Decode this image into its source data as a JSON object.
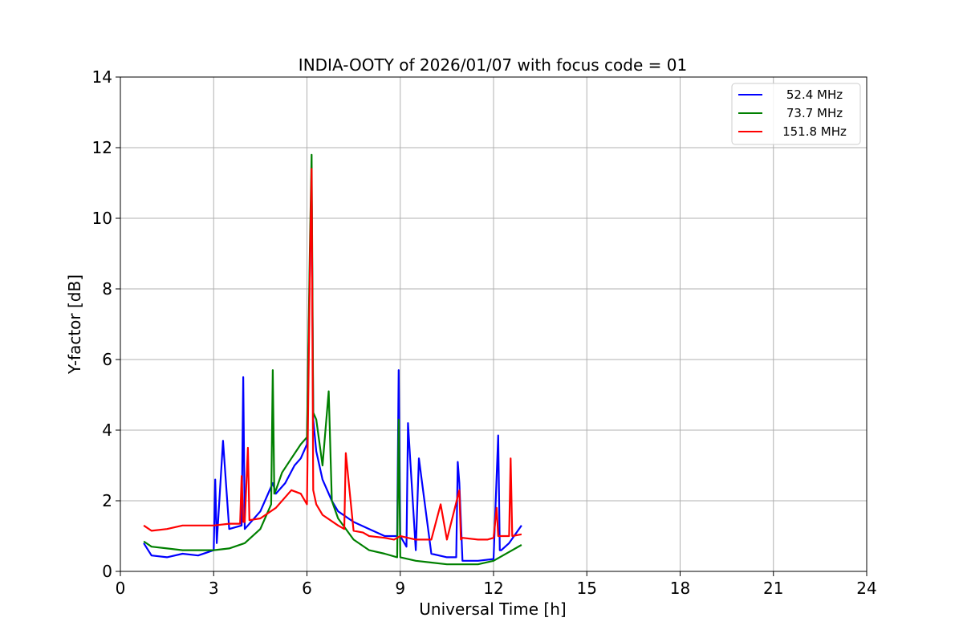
{
  "chart_data": {
    "type": "line",
    "title": "INDIA-OOTY of 2026/01/07 with focus code = 01",
    "xlabel": "Universal Time [h]",
    "ylabel": "Y-factor [dB]",
    "xlim": [
      0,
      24
    ],
    "ylim": [
      0,
      14
    ],
    "xticks": [
      0,
      3,
      6,
      9,
      12,
      15,
      18,
      21,
      24
    ],
    "yticks": [
      0,
      2,
      4,
      6,
      8,
      10,
      12,
      14
    ],
    "grid": true,
    "legend_position": "top-right",
    "series": [
      {
        "name": " 52.4 MHz",
        "color": "#0000ff",
        "x": [
          0.75,
          1.0,
          1.5,
          2.0,
          2.5,
          3.0,
          3.05,
          3.1,
          3.3,
          3.5,
          3.9,
          3.95,
          4.0,
          4.5,
          4.9,
          5.0,
          5.3,
          5.6,
          5.8,
          6.0,
          6.1,
          6.15,
          6.2,
          6.3,
          6.5,
          6.8,
          7.0,
          7.5,
          8.0,
          8.5,
          8.9,
          8.95,
          9.0,
          9.2,
          9.25,
          9.5,
          9.6,
          10.0,
          10.5,
          10.8,
          10.85,
          10.9,
          11.0,
          11.5,
          12.0,
          12.15,
          12.2,
          12.25,
          12.5,
          12.9
        ],
        "y": [
          0.8,
          0.45,
          0.4,
          0.5,
          0.45,
          0.6,
          2.6,
          0.8,
          3.7,
          1.2,
          1.3,
          5.5,
          1.2,
          1.7,
          2.5,
          2.2,
          2.5,
          3.0,
          3.2,
          3.6,
          9.0,
          10.9,
          4.3,
          3.4,
          2.6,
          2.0,
          1.7,
          1.4,
          1.2,
          1.0,
          1.0,
          5.7,
          1.0,
          0.7,
          4.2,
          0.6,
          3.2,
          0.5,
          0.4,
          0.4,
          3.1,
          2.5,
          0.3,
          0.3,
          0.35,
          3.85,
          0.6,
          0.6,
          0.8,
          1.3
        ]
      },
      {
        "name": " 73.7 MHz",
        "color": "#008000",
        "x": [
          0.75,
          1.0,
          1.5,
          2.0,
          2.5,
          3.0,
          3.5,
          4.0,
          4.5,
          4.85,
          4.9,
          4.95,
          5.0,
          5.2,
          5.5,
          5.8,
          6.0,
          6.1,
          6.15,
          6.2,
          6.3,
          6.5,
          6.7,
          6.8,
          7.0,
          7.5,
          8.0,
          8.5,
          8.9,
          8.95,
          9.0,
          9.5,
          10.0,
          10.5,
          11.0,
          11.5,
          12.0,
          12.5,
          12.9
        ],
        "y": [
          0.85,
          0.7,
          0.65,
          0.6,
          0.6,
          0.6,
          0.65,
          0.8,
          1.2,
          1.9,
          5.7,
          2.2,
          2.3,
          2.8,
          3.2,
          3.6,
          3.8,
          9.5,
          11.8,
          4.5,
          4.3,
          3.0,
          5.1,
          2.0,
          1.5,
          0.9,
          0.6,
          0.5,
          0.4,
          4.3,
          0.4,
          0.3,
          0.25,
          0.2,
          0.2,
          0.2,
          0.3,
          0.55,
          0.75
        ]
      },
      {
        "name": " 151.8 MHz",
        "color": "#ff0000",
        "x": [
          0.75,
          1.0,
          1.5,
          2.0,
          2.5,
          3.0,
          3.5,
          3.85,
          3.9,
          3.95,
          4.0,
          4.1,
          4.15,
          4.5,
          5.0,
          5.5,
          5.8,
          6.0,
          6.1,
          6.15,
          6.2,
          6.3,
          6.5,
          7.0,
          7.2,
          7.25,
          7.5,
          7.8,
          8.0,
          8.5,
          8.8,
          9.0,
          9.5,
          10.0,
          10.3,
          10.5,
          10.9,
          10.95,
          11.0,
          11.5,
          11.8,
          12.0,
          12.1,
          12.15,
          12.2,
          12.5,
          12.55,
          12.6,
          12.9
        ],
        "y": [
          1.3,
          1.15,
          1.2,
          1.3,
          1.3,
          1.3,
          1.35,
          1.35,
          2.7,
          1.4,
          1.4,
          3.5,
          1.45,
          1.5,
          1.8,
          2.3,
          2.2,
          1.9,
          9.0,
          11.4,
          2.3,
          1.9,
          1.6,
          1.3,
          1.2,
          3.35,
          1.15,
          1.1,
          1.0,
          0.95,
          0.9,
          1.0,
          0.9,
          0.9,
          1.9,
          0.9,
          2.3,
          0.9,
          0.95,
          0.9,
          0.9,
          0.95,
          1.8,
          1.0,
          1.0,
          1.0,
          3.2,
          1.0,
          1.05
        ]
      }
    ]
  }
}
